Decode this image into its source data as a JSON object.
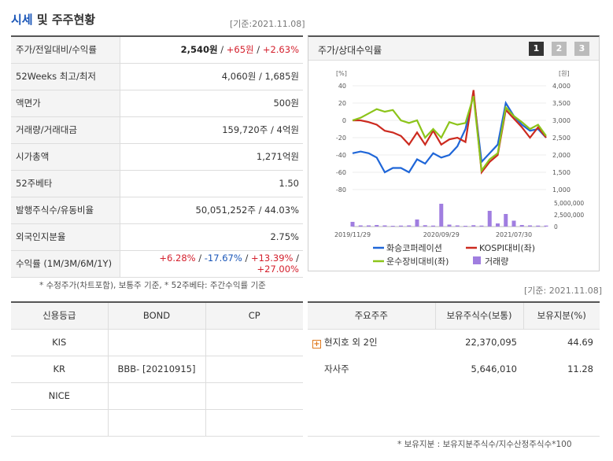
{
  "header": {
    "title_a": "시세",
    "title_b": "및 주주현황",
    "basis_top": "[기준:2021.11.08]",
    "basis_mid": "[기준: 2021.11.08]"
  },
  "quote": {
    "rows": [
      {
        "label": "주가/전일대비/수익률",
        "v1": "2,540",
        "v1u": "원",
        "sep1": " / ",
        "v2": "+65원",
        "sep2": " / ",
        "v3": "+2.63%"
      },
      {
        "label": "52Weeks 최고/최저",
        "value": "4,060원 / 1,685원"
      },
      {
        "label": "액면가",
        "value": "500원"
      },
      {
        "label": "거래량/거래대금",
        "value": "159,720주 / 4억원"
      },
      {
        "label": "시가총액",
        "value": "1,271억원"
      },
      {
        "label": "52주베타",
        "value": "1.50"
      },
      {
        "label": "발행주식수/유동비율",
        "value": "50,051,252주 / 44.03%"
      },
      {
        "label": "외국인지분율",
        "value": "2.75%"
      },
      {
        "label": "수익률 (1M/3M/6M/1Y)",
        "r1": "+6.28%",
        "r2": "-17.67%",
        "r3": "+13.39%",
        "r4": "+27.00%",
        "sep": "/"
      }
    ],
    "note": "* 수정주가(차트포함), 보통주 기준, * 52주베타: 주간수익률 기준"
  },
  "chart_panel": {
    "title": "주가/상대수익률",
    "pages": [
      "1",
      "2",
      "3"
    ],
    "colors": {
      "company": "#1f66d8",
      "kospi": "#cc2a1f",
      "sector": "#8cc41a",
      "volume": "#a07ee0",
      "active_page": "#333333",
      "inactive_page": "#bbbbbb"
    }
  },
  "chart_data": {
    "type": "line",
    "left_unit": "[%]",
    "right_unit": "[원]",
    "left_ticks": [
      "40",
      "20",
      "0",
      "-20",
      "-40",
      "-60",
      "-80"
    ],
    "left_range": [
      -80,
      40
    ],
    "right_ticks": [
      "4,000",
      "3,500",
      "3,000",
      "2,500",
      "2,000",
      "1,500",
      "1,000"
    ],
    "volume_ticks": [
      "5,000,000",
      "2,500,000",
      "0"
    ],
    "volume_range": [
      0,
      6000000
    ],
    "x_ticks": [
      "2019/11/29",
      "2020/09/29",
      "2021/07/30"
    ],
    "x": [
      0,
      1,
      2,
      3,
      4,
      5,
      6,
      7,
      8,
      9,
      10,
      11,
      12,
      13,
      14,
      15,
      16,
      17,
      18,
      19,
      20,
      21,
      22,
      23,
      24
    ],
    "series": [
      {
        "name": "화승코퍼레이션",
        "values": [
          -38,
          -36,
          -38,
          -43,
          -60,
          -55,
          -55,
          -60,
          -45,
          -50,
          -38,
          -43,
          -40,
          -30,
          -10,
          30,
          -48,
          -38,
          -28,
          20,
          5,
          -5,
          -12,
          -10,
          -20
        ]
      },
      {
        "name": "KOSPI대비(좌)",
        "values": [
          0,
          0,
          -2,
          -5,
          -12,
          -14,
          -18,
          -28,
          -14,
          -28,
          -12,
          -28,
          -22,
          -20,
          -25,
          35,
          -60,
          -48,
          -40,
          12,
          2,
          -8,
          -20,
          -8,
          -20
        ]
      },
      {
        "name": "운수장비대비(좌)",
        "values": [
          0,
          3,
          8,
          13,
          10,
          12,
          0,
          -3,
          0,
          -20,
          -10,
          -20,
          -2,
          -5,
          -3,
          28,
          -58,
          -45,
          -38,
          15,
          5,
          -2,
          -10,
          -5,
          -18
        ]
      }
    ],
    "volume": {
      "name": "거래량",
      "values": [
        1200000,
        300000,
        300000,
        400000,
        300000,
        200000,
        250000,
        300000,
        1800000,
        350000,
        250000,
        5800000,
        500000,
        300000,
        200000,
        350000,
        250000,
        4000000,
        800000,
        3200000,
        1500000,
        400000,
        300000,
        250000,
        250000
      ]
    }
  },
  "credit": {
    "headers": [
      "신용등급",
      "BOND",
      "CP"
    ],
    "rows": [
      {
        "agency": "KIS",
        "bond": "",
        "cp": ""
      },
      {
        "agency": "KR",
        "bond": "BBB- [20210915]",
        "cp": ""
      },
      {
        "agency": "NICE",
        "bond": "",
        "cp": ""
      },
      {
        "agency": "",
        "bond": "",
        "cp": ""
      }
    ]
  },
  "holders": {
    "headers": [
      "주요주주",
      "보유주식수(보통)",
      "보유지분(%)"
    ],
    "rows": [
      {
        "name": "현지호 외 2인",
        "shares": "22,370,095",
        "pct": "44.69",
        "expand": "+"
      },
      {
        "name": "자사주",
        "shares": "5,646,010",
        "pct": "11.28"
      }
    ],
    "note": "* 보유지분 : 보유지분주식수/지수산정주식수*100"
  }
}
